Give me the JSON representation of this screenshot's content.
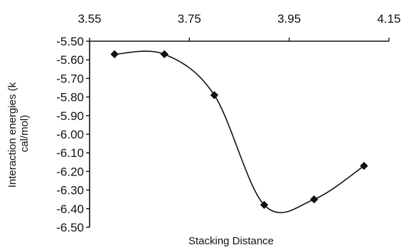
{
  "chart_data": {
    "type": "line",
    "title": "",
    "xlabel": "Stacking Distance",
    "ylabel": "Interaction energies (k cal/mol)",
    "ylabel_lines": [
      "Interaction energies (k",
      "cal/mol)"
    ],
    "xlim": [
      3.55,
      4.15
    ],
    "ylim": [
      -6.5,
      -5.5
    ],
    "x_ticks": [
      "3.55",
      "3.75",
      "3.95",
      "4.15"
    ],
    "x_tick_values": [
      3.55,
      3.75,
      3.95,
      4.15
    ],
    "x_axis_position": "top",
    "y_ticks": [
      "-5.50",
      "-5.60",
      "-5.70",
      "-5.80",
      "-5.90",
      "-6.00",
      "-6.10",
      "-6.20",
      "-6.30",
      "-6.40",
      "-6.50"
    ],
    "y_tick_values": [
      -5.5,
      -5.6,
      -5.7,
      -5.8,
      -5.9,
      -6.0,
      -6.1,
      -6.2,
      -6.3,
      -6.4,
      -6.5
    ],
    "grid": false,
    "marker": "diamond",
    "line_style": "smooth",
    "color": "#111111",
    "series": [
      {
        "x": [
          3.6,
          3.7,
          3.8,
          3.9,
          4.0,
          4.1
        ],
        "y": [
          -5.57,
          -5.57,
          -5.79,
          -6.38,
          -6.35,
          -6.17
        ]
      }
    ]
  }
}
